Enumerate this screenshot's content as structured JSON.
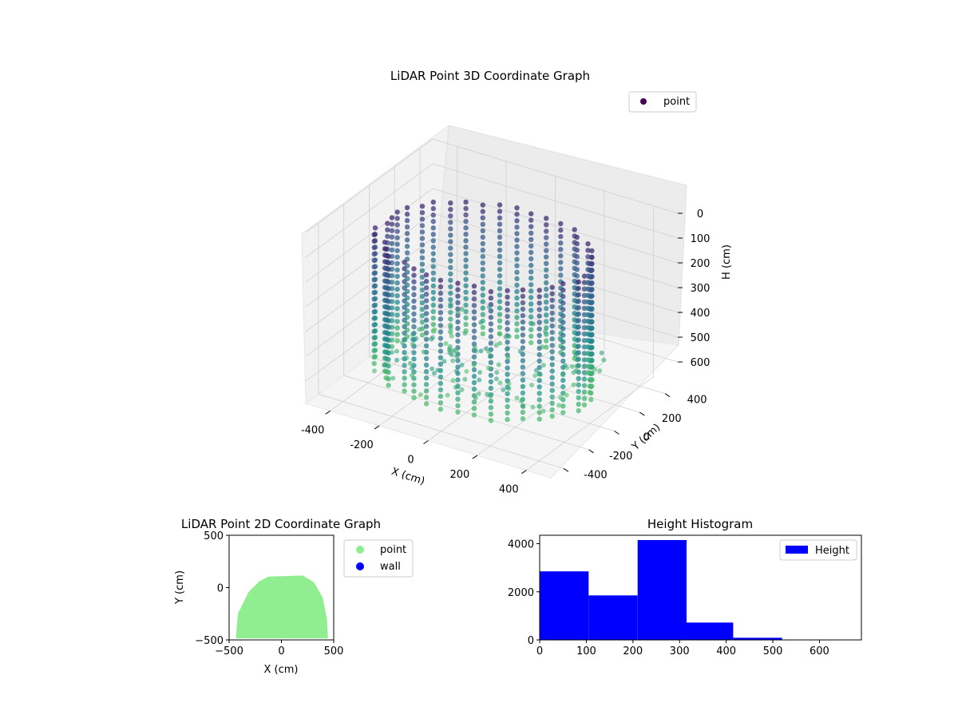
{
  "chart_data": [
    {
      "type": "scatter",
      "title": "LiDAR Point 3D Coordinate Graph",
      "xlabel": "X (cm)",
      "ylabel": "Y (cm)",
      "zlabel": "H (cm)",
      "x_ticks": [
        -400,
        -200,
        0,
        200,
        400
      ],
      "y_ticks": [
        -400,
        -200,
        0,
        200,
        400
      ],
      "z_ticks": [
        0,
        100,
        200,
        300,
        400,
        500,
        600
      ],
      "xlim": [
        -500,
        500
      ],
      "ylim": [
        -500,
        500
      ],
      "zlim": [
        690,
        0
      ],
      "z_inverted": true,
      "grid": true,
      "legend": "top-right",
      "series": [
        {
          "name": "point",
          "color": "#440154",
          "colormap": "viridis"
        }
      ]
    },
    {
      "type": "scatter",
      "title": "LiDAR Point 2D Coordinate Graph",
      "xlabel": "X (cm)",
      "ylabel": "Y (cm)",
      "x_ticks": [
        -500,
        0,
        500
      ],
      "y_ticks": [
        -500,
        0,
        500
      ],
      "xlim": [
        -500,
        500
      ],
      "ylim": [
        -500,
        500
      ],
      "legend": "outside-right",
      "series": [
        {
          "name": "point",
          "color": "#90ee90"
        },
        {
          "name": "wall",
          "color": "#0000ff"
        }
      ]
    },
    {
      "type": "bar",
      "title": "Height Histogram",
      "bins": [
        [
          0,
          105
        ],
        [
          105,
          210
        ],
        [
          210,
          315
        ],
        [
          315,
          415
        ],
        [
          415,
          520
        ]
      ],
      "values": [
        2850,
        1850,
        4150,
        720,
        90
      ],
      "x_ticks": [
        0,
        100,
        200,
        300,
        400,
        500,
        600
      ],
      "y_ticks": [
        0,
        2000,
        4000
      ],
      "xlim": [
        0,
        690
      ],
      "ylim": [
        0,
        4350
      ],
      "legend": "top-right",
      "series": [
        {
          "name": "Height",
          "color": "#0000ff"
        }
      ]
    }
  ]
}
